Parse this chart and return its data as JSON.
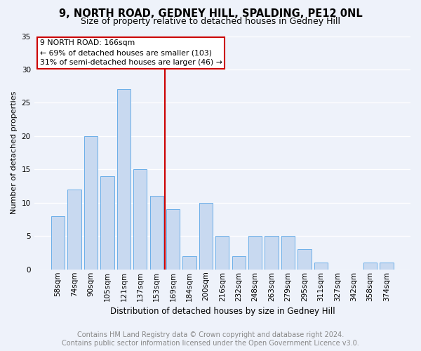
{
  "title": "9, NORTH ROAD, GEDNEY HILL, SPALDING, PE12 0NL",
  "subtitle": "Size of property relative to detached houses in Gedney Hill",
  "xlabel": "Distribution of detached houses by size in Gedney Hill",
  "ylabel": "Number of detached properties",
  "categories": [
    "58sqm",
    "74sqm",
    "90sqm",
    "105sqm",
    "121sqm",
    "137sqm",
    "153sqm",
    "169sqm",
    "184sqm",
    "200sqm",
    "216sqm",
    "232sqm",
    "248sqm",
    "263sqm",
    "279sqm",
    "295sqm",
    "311sqm",
    "327sqm",
    "342sqm",
    "358sqm",
    "374sqm"
  ],
  "values": [
    8,
    12,
    20,
    14,
    27,
    15,
    11,
    9,
    2,
    10,
    5,
    2,
    5,
    5,
    5,
    3,
    1,
    0,
    0,
    1,
    1
  ],
  "bar_color": "#c8d9f0",
  "bar_edge_color": "#6aaee8",
  "ref_line_label": "9 NORTH ROAD: 166sqm",
  "annotation_line1": "← 69% of detached houses are smaller (103)",
  "annotation_line2": "31% of semi-detached houses are larger (46) →",
  "ref_box_color": "#cc0000",
  "ylim": [
    0,
    35
  ],
  "yticks": [
    0,
    5,
    10,
    15,
    20,
    25,
    30,
    35
  ],
  "footer": "Contains HM Land Registry data © Crown copyright and database right 2024.\nContains public sector information licensed under the Open Government Licence v3.0.",
  "bg_color": "#eef2fa",
  "plot_bg_color": "#eef2fa",
  "title_fontsize": 10.5,
  "subtitle_fontsize": 9,
  "footer_fontsize": 7,
  "annot_fontsize": 7.8,
  "ylabel_fontsize": 8,
  "xlabel_fontsize": 8.5,
  "tick_fontsize": 7.5
}
